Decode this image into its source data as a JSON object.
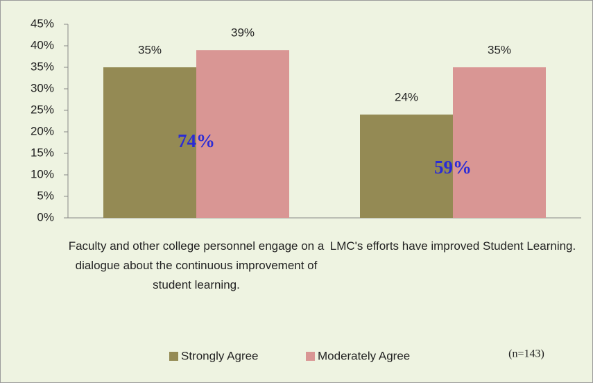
{
  "chart_data": {
    "type": "bar",
    "categories": [
      "Faculty and other college personnel engage on a dialogue about the continuous improvement of student learning.",
      "LMC's efforts have improved Student Learning."
    ],
    "series": [
      {
        "name": "Strongly Agree",
        "color": "#948a54",
        "values": [
          35,
          24
        ],
        "value_labels": [
          "35%",
          "24%"
        ]
      },
      {
        "name": "Moderately Agree",
        "color": "#d99694",
        "values": [
          39,
          35
        ],
        "value_labels": [
          "39%",
          "35%"
        ]
      }
    ],
    "ylim": [
      0,
      45
    ],
    "yticks": [
      {
        "value": 0,
        "label": "0%"
      },
      {
        "value": 5,
        "label": "5%"
      },
      {
        "value": 10,
        "label": "10%"
      },
      {
        "value": 15,
        "label": "15%"
      },
      {
        "value": 20,
        "label": "20%"
      },
      {
        "value": 25,
        "label": "25%"
      },
      {
        "value": 30,
        "label": "30%"
      },
      {
        "value": 35,
        "label": "35%"
      },
      {
        "value": 40,
        "label": "40%"
      },
      {
        "value": 45,
        "label": "45%"
      }
    ],
    "annotations": [
      "74%",
      "59%",
      "(n=143)"
    ],
    "legend": "bottom"
  }
}
